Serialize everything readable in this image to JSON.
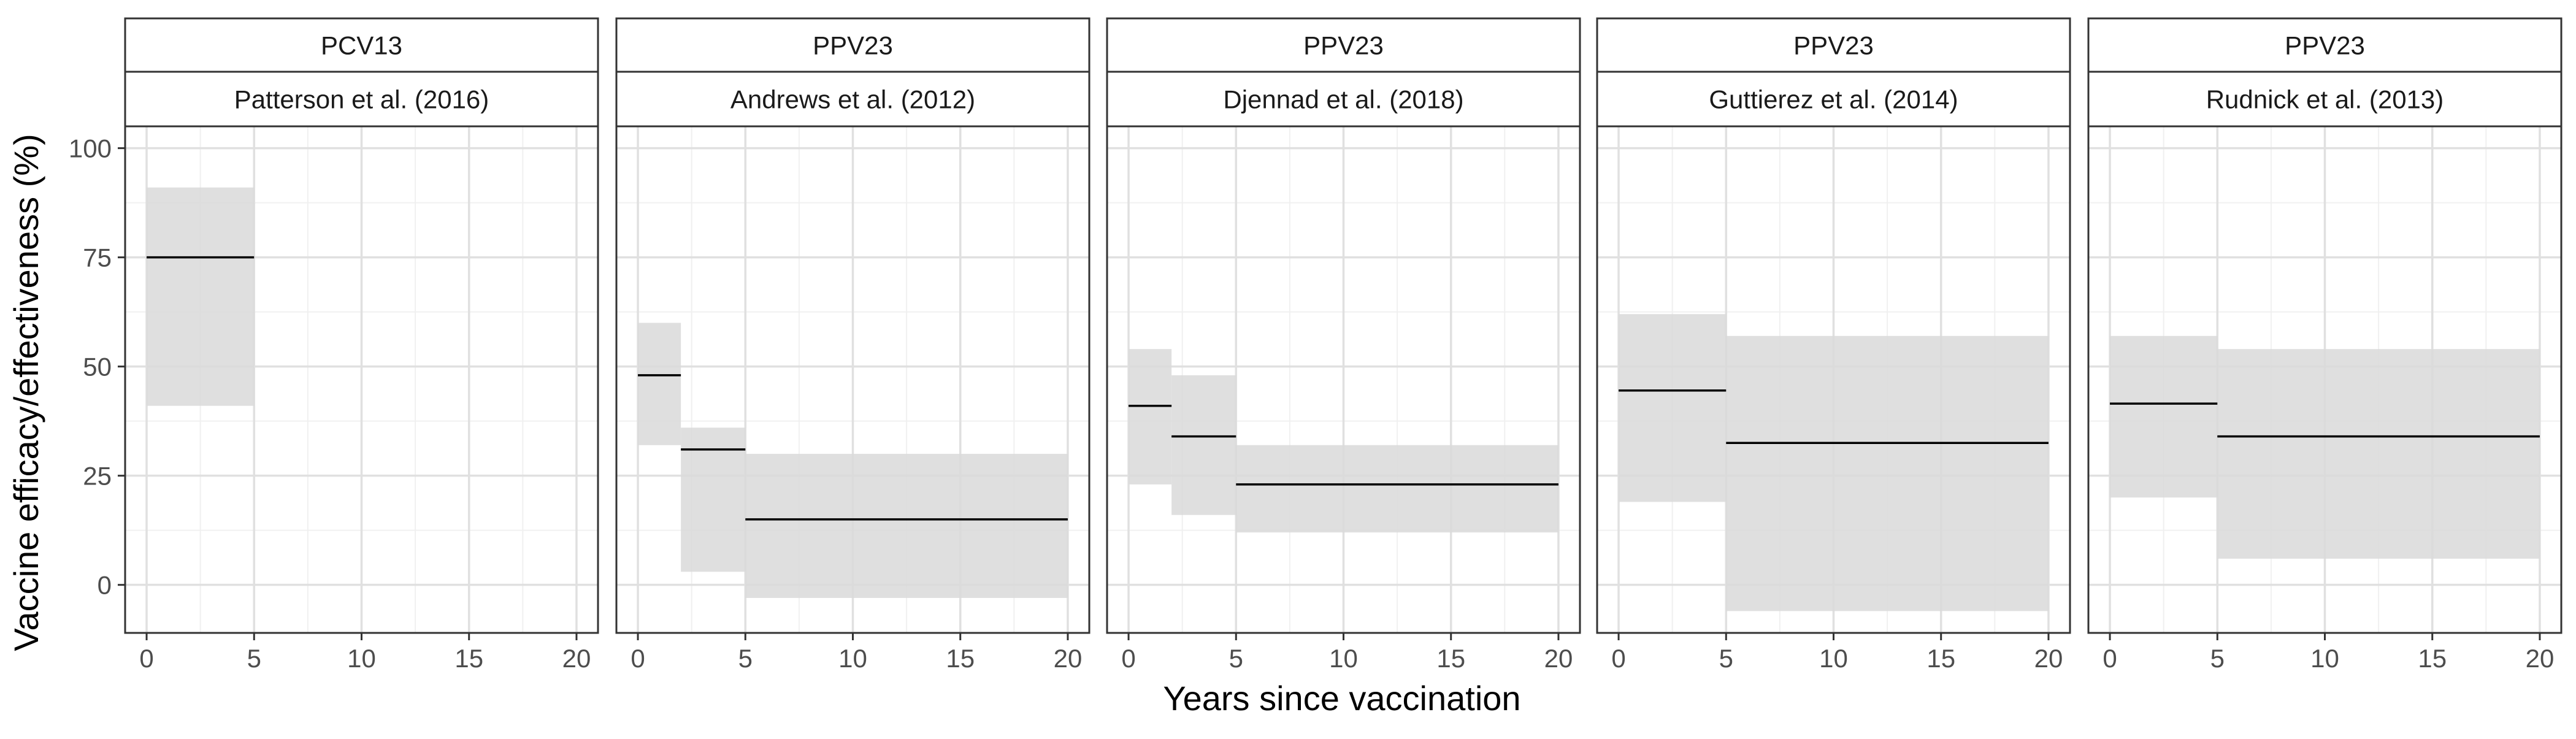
{
  "chart_data": {
    "type": "step-interval",
    "xlabel": "Years since vaccination",
    "ylabel": "Vaccine efficacy/effectiveness (%)",
    "xlim": [
      -1,
      21
    ],
    "ylim": [
      -11,
      105
    ],
    "x_ticks": [
      0,
      5,
      10,
      15,
      20
    ],
    "y_ticks": [
      0,
      25,
      50,
      75,
      100
    ],
    "grid": true,
    "colors": {
      "ribbon": "#d9d9d9",
      "estimate_line": "#000000",
      "grid_major": "#e0e0e0",
      "grid_minor": "#f0f0f0",
      "strip_fill": "#ffffff",
      "panel_border": "#333333"
    },
    "panels": [
      {
        "vaccine": "PCV13",
        "study": "Patterson et al. (2016)",
        "segments": [
          {
            "x_start": 0,
            "x_end": 5,
            "estimate": 75,
            "lower": 41,
            "upper": 91
          }
        ]
      },
      {
        "vaccine": "PPV23",
        "study": "Andrews et al. (2012)",
        "segments": [
          {
            "x_start": 0,
            "x_end": 2,
            "estimate": 48,
            "lower": 32,
            "upper": 60
          },
          {
            "x_start": 2,
            "x_end": 5,
            "estimate": 31,
            "lower": 3,
            "upper": 36
          },
          {
            "x_start": 5,
            "x_end": 20,
            "estimate": 15,
            "lower": -3,
            "upper": 30
          }
        ]
      },
      {
        "vaccine": "PPV23",
        "study": "Djennad et al. (2018)",
        "segments": [
          {
            "x_start": 0,
            "x_end": 2,
            "estimate": 41,
            "lower": 23,
            "upper": 54
          },
          {
            "x_start": 2,
            "x_end": 5,
            "estimate": 34,
            "lower": 16,
            "upper": 48
          },
          {
            "x_start": 5,
            "x_end": 20,
            "estimate": 23,
            "lower": 12,
            "upper": 32
          }
        ]
      },
      {
        "vaccine": "PPV23",
        "study": "Guttierez et al. (2014)",
        "segments": [
          {
            "x_start": 0,
            "x_end": 5,
            "estimate": 44.5,
            "lower": 19,
            "upper": 62
          },
          {
            "x_start": 5,
            "x_end": 20,
            "estimate": 32.5,
            "lower": -6,
            "upper": 57
          }
        ]
      },
      {
        "vaccine": "PPV23",
        "study": "Rudnick et al. (2013)",
        "segments": [
          {
            "x_start": 0,
            "x_end": 5,
            "estimate": 41.5,
            "lower": 20,
            "upper": 57
          },
          {
            "x_start": 5,
            "x_end": 20,
            "estimate": 34,
            "lower": 6,
            "upper": 54
          }
        ]
      }
    ]
  }
}
